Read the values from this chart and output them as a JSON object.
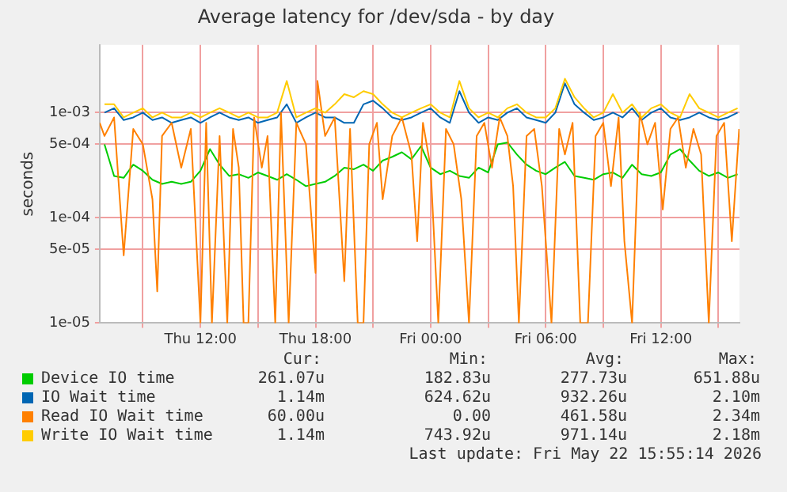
{
  "chart_data": {
    "type": "line",
    "title": "Average latency for /dev/sda - by day",
    "ylabel": "seconds",
    "log": "y",
    "grid": true,
    "legend": "bottom",
    "xlim": [
      "2026-05-21T06:45",
      "2026-05-22T16:06"
    ],
    "xticks": [
      {
        "value": "2026-05-21T09:00",
        "label": null
      },
      {
        "value": "2026-05-21T12:00",
        "label": "Thu 12:00"
      },
      {
        "value": "2026-05-21T15:00",
        "label": null
      },
      {
        "value": "2026-05-21T18:00",
        "label": "Thu 18:00"
      },
      {
        "value": "2026-05-21T21:00",
        "label": null
      },
      {
        "value": "2026-05-22T00:00",
        "label": "Fri 00:00"
      },
      {
        "value": "2026-05-22T03:00",
        "label": null
      },
      {
        "value": "2026-05-22T06:00",
        "label": "Fri 06:00"
      },
      {
        "value": "2026-05-22T09:00",
        "label": null
      },
      {
        "value": "2026-05-22T12:00",
        "label": "Fri 12:00"
      },
      {
        "value": "2026-05-22T15:00",
        "label": null
      }
    ],
    "ylim": [
      1e-05,
      0.0044
    ],
    "yticks": [
      {
        "value": 1e-05,
        "label": "1e-05"
      },
      {
        "value": 5e-05,
        "label": "5e-05"
      },
      {
        "value": 0.0001,
        "label": "1e-04"
      },
      {
        "value": 0.0005,
        "label": "5e-04"
      },
      {
        "value": 0.001,
        "label": "1e-03"
      }
    ],
    "x": [
      "2026-05-21T07:00",
      "2026-05-21T07:30",
      "2026-05-21T08:00",
      "2026-05-21T08:30",
      "2026-05-21T09:00",
      "2026-05-21T09:30",
      "2026-05-21T10:00",
      "2026-05-21T10:30",
      "2026-05-21T11:00",
      "2026-05-21T11:30",
      "2026-05-21T12:00",
      "2026-05-21T12:30",
      "2026-05-21T13:00",
      "2026-05-21T13:30",
      "2026-05-21T14:00",
      "2026-05-21T14:30",
      "2026-05-21T15:00",
      "2026-05-21T15:30",
      "2026-05-21T16:00",
      "2026-05-21T16:30",
      "2026-05-21T17:00",
      "2026-05-21T17:30",
      "2026-05-21T18:00",
      "2026-05-21T18:30",
      "2026-05-21T19:00",
      "2026-05-21T19:30",
      "2026-05-21T20:00",
      "2026-05-21T20:30",
      "2026-05-21T21:00",
      "2026-05-21T21:30",
      "2026-05-21T22:00",
      "2026-05-21T22:30",
      "2026-05-21T23:00",
      "2026-05-21T23:30",
      "2026-05-22T00:00",
      "2026-05-22T00:30",
      "2026-05-22T01:00",
      "2026-05-22T01:30",
      "2026-05-22T02:00",
      "2026-05-22T02:30",
      "2026-05-22T03:00",
      "2026-05-22T03:30",
      "2026-05-22T04:00",
      "2026-05-22T04:30",
      "2026-05-22T05:00",
      "2026-05-22T05:30",
      "2026-05-22T06:00",
      "2026-05-22T06:30",
      "2026-05-22T07:00",
      "2026-05-22T07:30",
      "2026-05-22T08:00",
      "2026-05-22T08:30",
      "2026-05-22T09:00",
      "2026-05-22T09:30",
      "2026-05-22T10:00",
      "2026-05-22T10:30",
      "2026-05-22T11:00",
      "2026-05-22T11:30",
      "2026-05-22T12:00",
      "2026-05-22T12:30",
      "2026-05-22T13:00",
      "2026-05-22T13:30",
      "2026-05-22T14:00",
      "2026-05-22T14:30",
      "2026-05-22T15:00",
      "2026-05-22T15:30",
      "2026-05-22T16:00"
    ],
    "series": [
      {
        "name": "Device IO time",
        "color": "#00cc00",
        "values": [
          0.0005,
          0.00025,
          0.00024,
          0.00032,
          0.00028,
          0.00023,
          0.00021,
          0.00022,
          0.00021,
          0.00022,
          0.00028,
          0.00045,
          0.00032,
          0.00025,
          0.00026,
          0.00024,
          0.00027,
          0.00025,
          0.00023,
          0.00026,
          0.00023,
          0.0002,
          0.00021,
          0.00022,
          0.00025,
          0.0003,
          0.00029,
          0.00032,
          0.00028,
          0.00035,
          0.00038,
          0.00042,
          0.00036,
          0.00048,
          0.0003,
          0.00026,
          0.00028,
          0.00025,
          0.00024,
          0.0003,
          0.00027,
          0.0005,
          0.00052,
          0.0004,
          0.00032,
          0.00028,
          0.00026,
          0.0003,
          0.00034,
          0.00025,
          0.00024,
          0.00023,
          0.00026,
          0.00027,
          0.00024,
          0.00032,
          0.00026,
          0.00025,
          0.00027,
          0.0004,
          0.00045,
          0.00035,
          0.00028,
          0.00025,
          0.00027,
          0.00024,
          0.00026
        ]
      },
      {
        "name": "IO Wait time",
        "color": "#0066b3",
        "values": [
          0.001,
          0.0011,
          0.00085,
          0.0009,
          0.001,
          0.00085,
          0.0009,
          0.0008,
          0.00085,
          0.0009,
          0.0008,
          0.0009,
          0.001,
          0.0009,
          0.00085,
          0.0009,
          0.0008,
          0.00085,
          0.0009,
          0.0012,
          0.0008,
          0.0009,
          0.001,
          0.0009,
          0.0009,
          0.0008,
          0.0008,
          0.0012,
          0.0013,
          0.0011,
          0.0009,
          0.00085,
          0.0009,
          0.001,
          0.0011,
          0.0009,
          0.0008,
          0.0016,
          0.001,
          0.0008,
          0.0009,
          0.00085,
          0.001,
          0.0011,
          0.0009,
          0.00085,
          0.0008,
          0.001,
          0.0019,
          0.0012,
          0.001,
          0.00085,
          0.0009,
          0.001,
          0.0009,
          0.0011,
          0.00085,
          0.001,
          0.0011,
          0.0009,
          0.00085,
          0.0009,
          0.001,
          0.0009,
          0.00085,
          0.0009,
          0.001
        ]
      },
      {
        "name": "Read IO Wait time",
        "color": "#ff8000",
        "x": [
          "2026-05-21T06:45",
          "2026-05-21T07:00",
          "2026-05-21T07:30",
          "2026-05-21T08:00",
          "2026-05-21T08:30",
          "2026-05-21T09:00",
          "2026-05-21T09:30",
          "2026-05-21T09:45",
          "2026-05-21T10:00",
          "2026-05-21T10:30",
          "2026-05-21T11:00",
          "2026-05-21T11:30",
          "2026-05-21T12:00",
          "2026-05-21T12:18",
          "2026-05-21T12:36",
          "2026-05-21T13:00",
          "2026-05-21T13:24",
          "2026-05-21T13:42",
          "2026-05-21T14:00",
          "2026-05-21T14:15",
          "2026-05-21T14:30",
          "2026-05-21T14:48",
          "2026-05-21T15:12",
          "2026-05-21T15:30",
          "2026-05-21T15:54",
          "2026-05-21T16:12",
          "2026-05-21T16:36",
          "2026-05-21T17:00",
          "2026-05-21T17:30",
          "2026-05-21T18:00",
          "2026-05-21T18:06",
          "2026-05-21T18:30",
          "2026-05-21T19:00",
          "2026-05-21T19:30",
          "2026-05-21T19:48",
          "2026-05-21T20:12",
          "2026-05-21T20:30",
          "2026-05-21T20:48",
          "2026-05-21T21:12",
          "2026-05-21T21:30",
          "2026-05-21T22:00",
          "2026-05-21T22:30",
          "2026-05-21T23:00",
          "2026-05-21T23:18",
          "2026-05-21T23:36",
          "2026-05-22T00:00",
          "2026-05-22T00:24",
          "2026-05-22T00:48",
          "2026-05-22T01:12",
          "2026-05-22T01:36",
          "2026-05-22T02:00",
          "2026-05-22T02:24",
          "2026-05-22T02:48",
          "2026-05-22T03:12",
          "2026-05-22T03:36",
          "2026-05-22T04:00",
          "2026-05-22T04:18",
          "2026-05-22T04:36",
          "2026-05-22T05:00",
          "2026-05-22T05:24",
          "2026-05-22T05:48",
          "2026-05-22T06:18",
          "2026-05-22T06:42",
          "2026-05-22T07:00",
          "2026-05-22T07:24",
          "2026-05-22T07:48",
          "2026-05-22T08:12",
          "2026-05-22T08:36",
          "2026-05-22T09:00",
          "2026-05-22T09:24",
          "2026-05-22T09:48",
          "2026-05-22T10:06",
          "2026-05-22T10:30",
          "2026-05-22T10:54",
          "2026-05-22T11:18",
          "2026-05-22T11:42",
          "2026-05-22T12:06",
          "2026-05-22T12:30",
          "2026-05-22T12:54",
          "2026-05-22T13:18",
          "2026-05-22T13:42",
          "2026-05-22T14:06",
          "2026-05-22T14:30",
          "2026-05-22T14:54",
          "2026-05-22T15:18",
          "2026-05-22T15:42",
          "2026-05-22T16:05"
        ],
        "values": [
          0.0008,
          0.0006,
          0.0009,
          4.4e-05,
          0.0007,
          0.0005,
          0.00015,
          2e-05,
          0.0006,
          0.0008,
          0.0003,
          0.0007,
          1e-05,
          0.0008,
          1e-05,
          0.0006,
          1e-05,
          0.0007,
          0.0003,
          1e-05,
          1e-05,
          0.0009,
          0.0003,
          0.0006,
          1e-05,
          0.001,
          1e-05,
          0.0008,
          0.0005,
          3e-05,
          0.002,
          0.0006,
          0.0009,
          2.5e-05,
          0.0007,
          1e-05,
          1e-05,
          0.0005,
          0.0008,
          0.00015,
          0.0006,
          0.0009,
          0.0004,
          6e-05,
          0.0008,
          0.0003,
          1e-05,
          0.0007,
          0.0005,
          0.00015,
          1e-05,
          0.0006,
          0.0008,
          0.0003,
          0.0009,
          0.0006,
          0.0002,
          1e-05,
          0.0006,
          0.0007,
          0.0002,
          1e-05,
          0.0007,
          0.0004,
          0.0008,
          1e-05,
          1e-05,
          0.0006,
          0.0008,
          0.0002,
          0.0009,
          6e-05,
          1e-05,
          0.001,
          0.0005,
          0.0008,
          0.00012,
          0.0007,
          0.0009,
          0.0003,
          0.0007,
          0.0004,
          1e-05,
          0.0006,
          0.0008,
          6e-05,
          0.0007
        ]
      },
      {
        "name": "Write IO Wait time",
        "color": "#ffcc00",
        "values": [
          0.0012,
          0.0012,
          0.0009,
          0.001,
          0.0011,
          0.0009,
          0.001,
          0.0009,
          0.0009,
          0.001,
          0.0009,
          0.001,
          0.0011,
          0.001,
          0.0009,
          0.001,
          0.0009,
          0.0009,
          0.001,
          0.002,
          0.0009,
          0.001,
          0.0011,
          0.001,
          0.0012,
          0.0015,
          0.0014,
          0.0016,
          0.0015,
          0.0012,
          0.001,
          0.0009,
          0.001,
          0.0011,
          0.0012,
          0.001,
          0.0009,
          0.002,
          0.0011,
          0.0009,
          0.001,
          0.0009,
          0.0011,
          0.0012,
          0.001,
          0.0009,
          0.0009,
          0.0011,
          0.0021,
          0.0014,
          0.0011,
          0.0009,
          0.001,
          0.0015,
          0.001,
          0.0012,
          0.0009,
          0.0011,
          0.0012,
          0.001,
          0.0009,
          0.0015,
          0.0011,
          0.001,
          0.0009,
          0.001,
          0.0011
        ]
      }
    ],
    "annotations": [
      "Cur:",
      "Min:",
      "Avg:",
      "Max:",
      "261.07u",
      "182.83u",
      "277.73u",
      "651.88u",
      "1.14m",
      "624.62u",
      "932.26u",
      "2.10m",
      "60.00u",
      "0.00",
      "461.58u",
      "2.34m",
      "1.14m",
      "743.92u",
      "971.14u",
      "2.18m",
      "Last update: Fri May 22 15:55:14 2026"
    ]
  }
}
